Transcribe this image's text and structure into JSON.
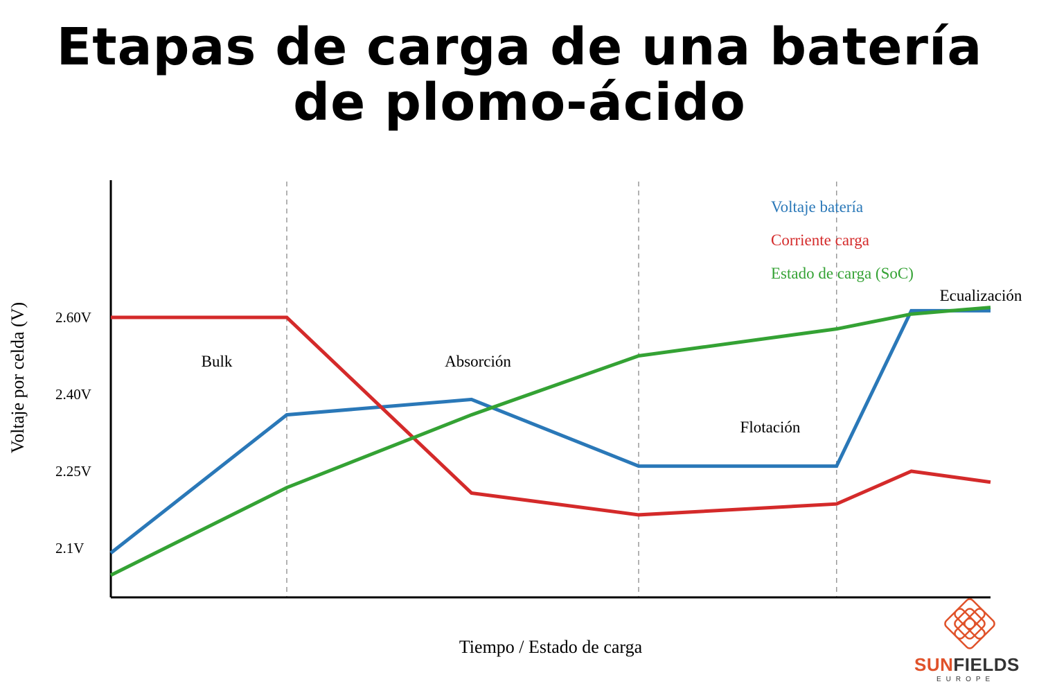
{
  "title_line1": "Etapas de carga de una batería",
  "title_line2": "de plomo-ácido",
  "chart_data": {
    "type": "line",
    "xlabel": "Tiempo / Estado de carga",
    "ylabel": "Voltaje por celda (V)",
    "y_ticks": [
      "2.60V",
      "2.40V",
      "2.25V",
      "2.1V"
    ],
    "stages": [
      "Bulk",
      "Absorción",
      "Flotación",
      "Ecualización"
    ],
    "stage_boundaries_x": [
      20,
      60,
      82.5
    ],
    "x": [
      0,
      20,
      41,
      60,
      82.5,
      91,
      100
    ],
    "series": [
      {
        "name": "Voltaje batería",
        "color": "#2a78b8",
        "values": [
          2.1,
          2.36,
          2.39,
          2.26,
          2.26,
          2.62,
          2.62
        ]
      },
      {
        "name": "Corriente carga",
        "color": "#d42a2a",
        "values": [
          2.6,
          2.6,
          2.21,
          2.17,
          2.19,
          2.25,
          2.23
        ]
      },
      {
        "name": "Estado de carga (SoC)",
        "color": "#34a234",
        "values": [
          2.04,
          2.22,
          2.36,
          2.5,
          2.57,
          2.61,
          2.63
        ]
      }
    ]
  },
  "logo": {
    "part1": "SUN",
    "part2": "FIELDS",
    "sub": "EUROPE",
    "color1": "#e0522a",
    "color2": "#333333"
  }
}
